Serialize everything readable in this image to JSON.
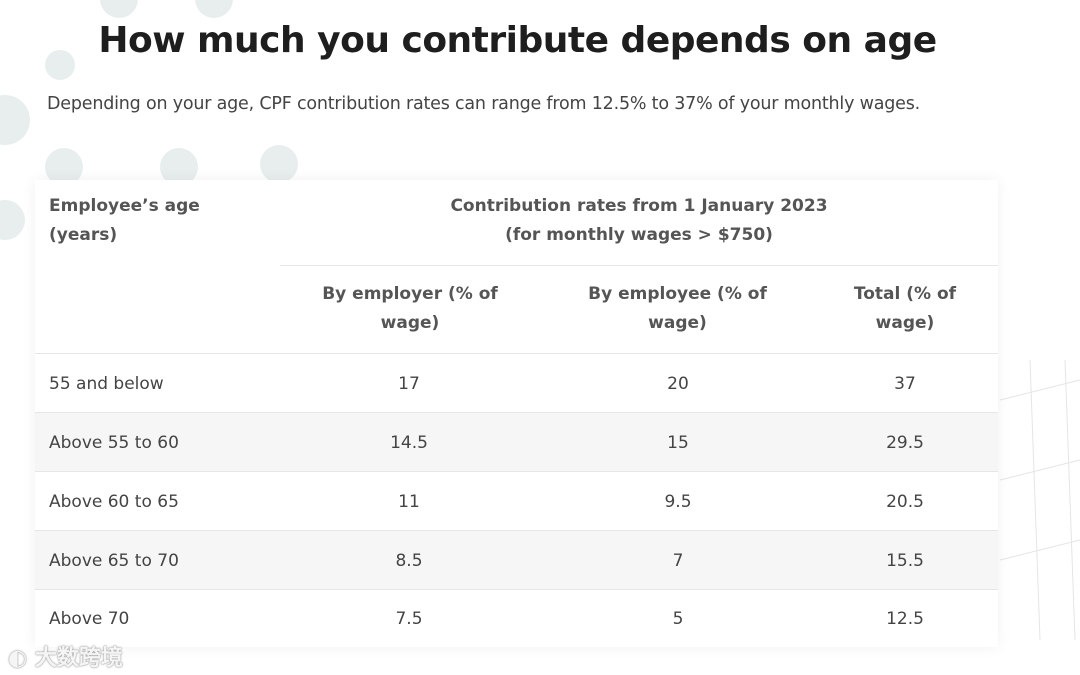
{
  "title": "How much you contribute depends on age",
  "subtitle": "Depending on your age, CPF contribution rates can range from 12.5% to 37% of your monthly wages.",
  "table": {
    "age_header": [
      "Employee’s age",
      "(years)"
    ],
    "group_header": [
      "Contribution rates from 1 January 2023",
      "(for monthly wages > $750)"
    ],
    "columns": [
      [
        "By employer (% of",
        "wage)"
      ],
      [
        "By employee (% of",
        "wage)"
      ],
      [
        "Total (% of",
        "wage)"
      ]
    ],
    "rows": [
      {
        "age": "55 and below",
        "employer": "17",
        "employee": "20",
        "total": "37"
      },
      {
        "age": "Above 55 to 60",
        "employer": "14.5",
        "employee": "15",
        "total": "29.5"
      },
      {
        "age": "Above 60 to 65",
        "employer": "11",
        "employee": "9.5",
        "total": "20.5"
      },
      {
        "age": "Above 65 to 70",
        "employer": "8.5",
        "employee": "7",
        "total": "15.5"
      },
      {
        "age": "Above 70",
        "employer": "7.5",
        "employee": "5",
        "total": "12.5"
      }
    ]
  },
  "watermark": "大数跨境"
}
